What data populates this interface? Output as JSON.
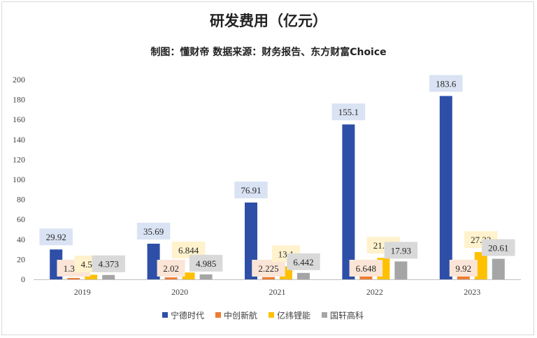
{
  "chart_data": {
    "type": "bar",
    "title": "研发费用（亿元）",
    "subtitle": "制图：懂财帝   数据来源：财务报告、东方财富Choice",
    "categories": [
      "2019",
      "2020",
      "2021",
      "2022",
      "2023"
    ],
    "series": [
      {
        "name": "宁德时代",
        "color": "#2e4fa8",
        "labelBg": "#dae3f3",
        "values": [
          29.92,
          35.69,
          76.91,
          155.1,
          183.6
        ],
        "labels": [
          "29.92",
          "35.69",
          "76.91",
          "155.1",
          "183.6"
        ]
      },
      {
        "name": "中创新航",
        "color": "#ed7d31",
        "labelBg": "#fbe5d6",
        "values": [
          1.359,
          2.02,
          2.225,
          6.648,
          9.92
        ],
        "labels": [
          "1.359",
          "2.02",
          "2.225",
          "6.648",
          "9.92"
        ]
      },
      {
        "name": "亿纬锂能",
        "color": "#ffc000",
        "labelBg": "#fff2cc",
        "values": [
          4.587,
          6.844,
          13.1,
          21.53,
          27.32
        ],
        "labels": [
          "4.587",
          "6.844",
          "13.1",
          "21.53",
          "27.32"
        ]
      },
      {
        "name": "国轩高科",
        "color": "#a5a5a5",
        "labelBg": "#d9d9d9",
        "values": [
          4.373,
          4.985,
          6.442,
          17.93,
          20.61
        ],
        "labels": [
          "4.373",
          "4.985",
          "6.442",
          "17.93",
          "20.61"
        ]
      }
    ],
    "ylim": [
      0,
      200
    ],
    "yticks": [
      "0",
      "20",
      "40",
      "60",
      "80",
      "100",
      "120",
      "140",
      "160",
      "180",
      "200"
    ],
    "grid": false,
    "legend_position": "bottom"
  }
}
